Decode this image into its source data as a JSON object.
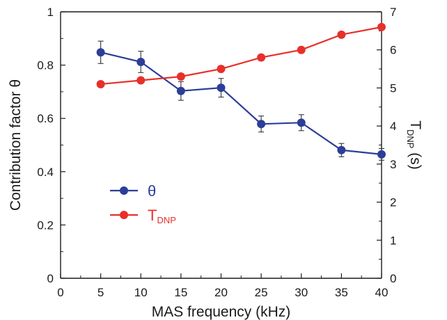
{
  "chart_data": {
    "type": "line",
    "xlabel": "MAS frequency (kHz)",
    "ylabel_left": "Contribution factor θ",
    "ylabel_right": {
      "base": "T",
      "sub": "DNP",
      "suffix": " (s)"
    },
    "x": [
      5,
      10,
      15,
      20,
      25,
      30,
      35,
      40
    ],
    "xlim": [
      0,
      40
    ],
    "xticks": [
      "0",
      "5",
      "10",
      "15",
      "20",
      "25",
      "30",
      "35",
      "40"
    ],
    "xtick_values": [
      0,
      5,
      10,
      15,
      20,
      25,
      30,
      35,
      40
    ],
    "ylim_left": [
      0,
      1
    ],
    "yticks_left": [
      "0",
      "0.2",
      "0.4",
      "0.6",
      "0.8",
      "1"
    ],
    "ytick_values_left": [
      0,
      0.2,
      0.4,
      0.6,
      0.8,
      1
    ],
    "ylim_right": [
      0,
      7
    ],
    "yticks_right": [
      "0",
      "1",
      "2",
      "3",
      "4",
      "5",
      "6",
      "7"
    ],
    "ytick_values_right": [
      0,
      1,
      2,
      3,
      4,
      5,
      6,
      7
    ],
    "grid": false,
    "legend_position": "left-middle",
    "series": [
      {
        "name": "θ",
        "axis": "left",
        "color": "#2c3e98",
        "values": [
          0.848,
          0.812,
          0.703,
          0.715,
          0.579,
          0.584,
          0.481,
          0.465
        ],
        "errors": [
          0.042,
          0.04,
          0.035,
          0.035,
          0.03,
          0.03,
          0.025,
          0.022
        ]
      },
      {
        "name": {
          "base": "T",
          "sub": "DNP"
        },
        "axis": "right",
        "color": "#e8302a",
        "values": [
          5.1,
          5.2,
          5.3,
          5.5,
          5.8,
          6.0,
          6.4,
          6.6
        ]
      }
    ]
  }
}
